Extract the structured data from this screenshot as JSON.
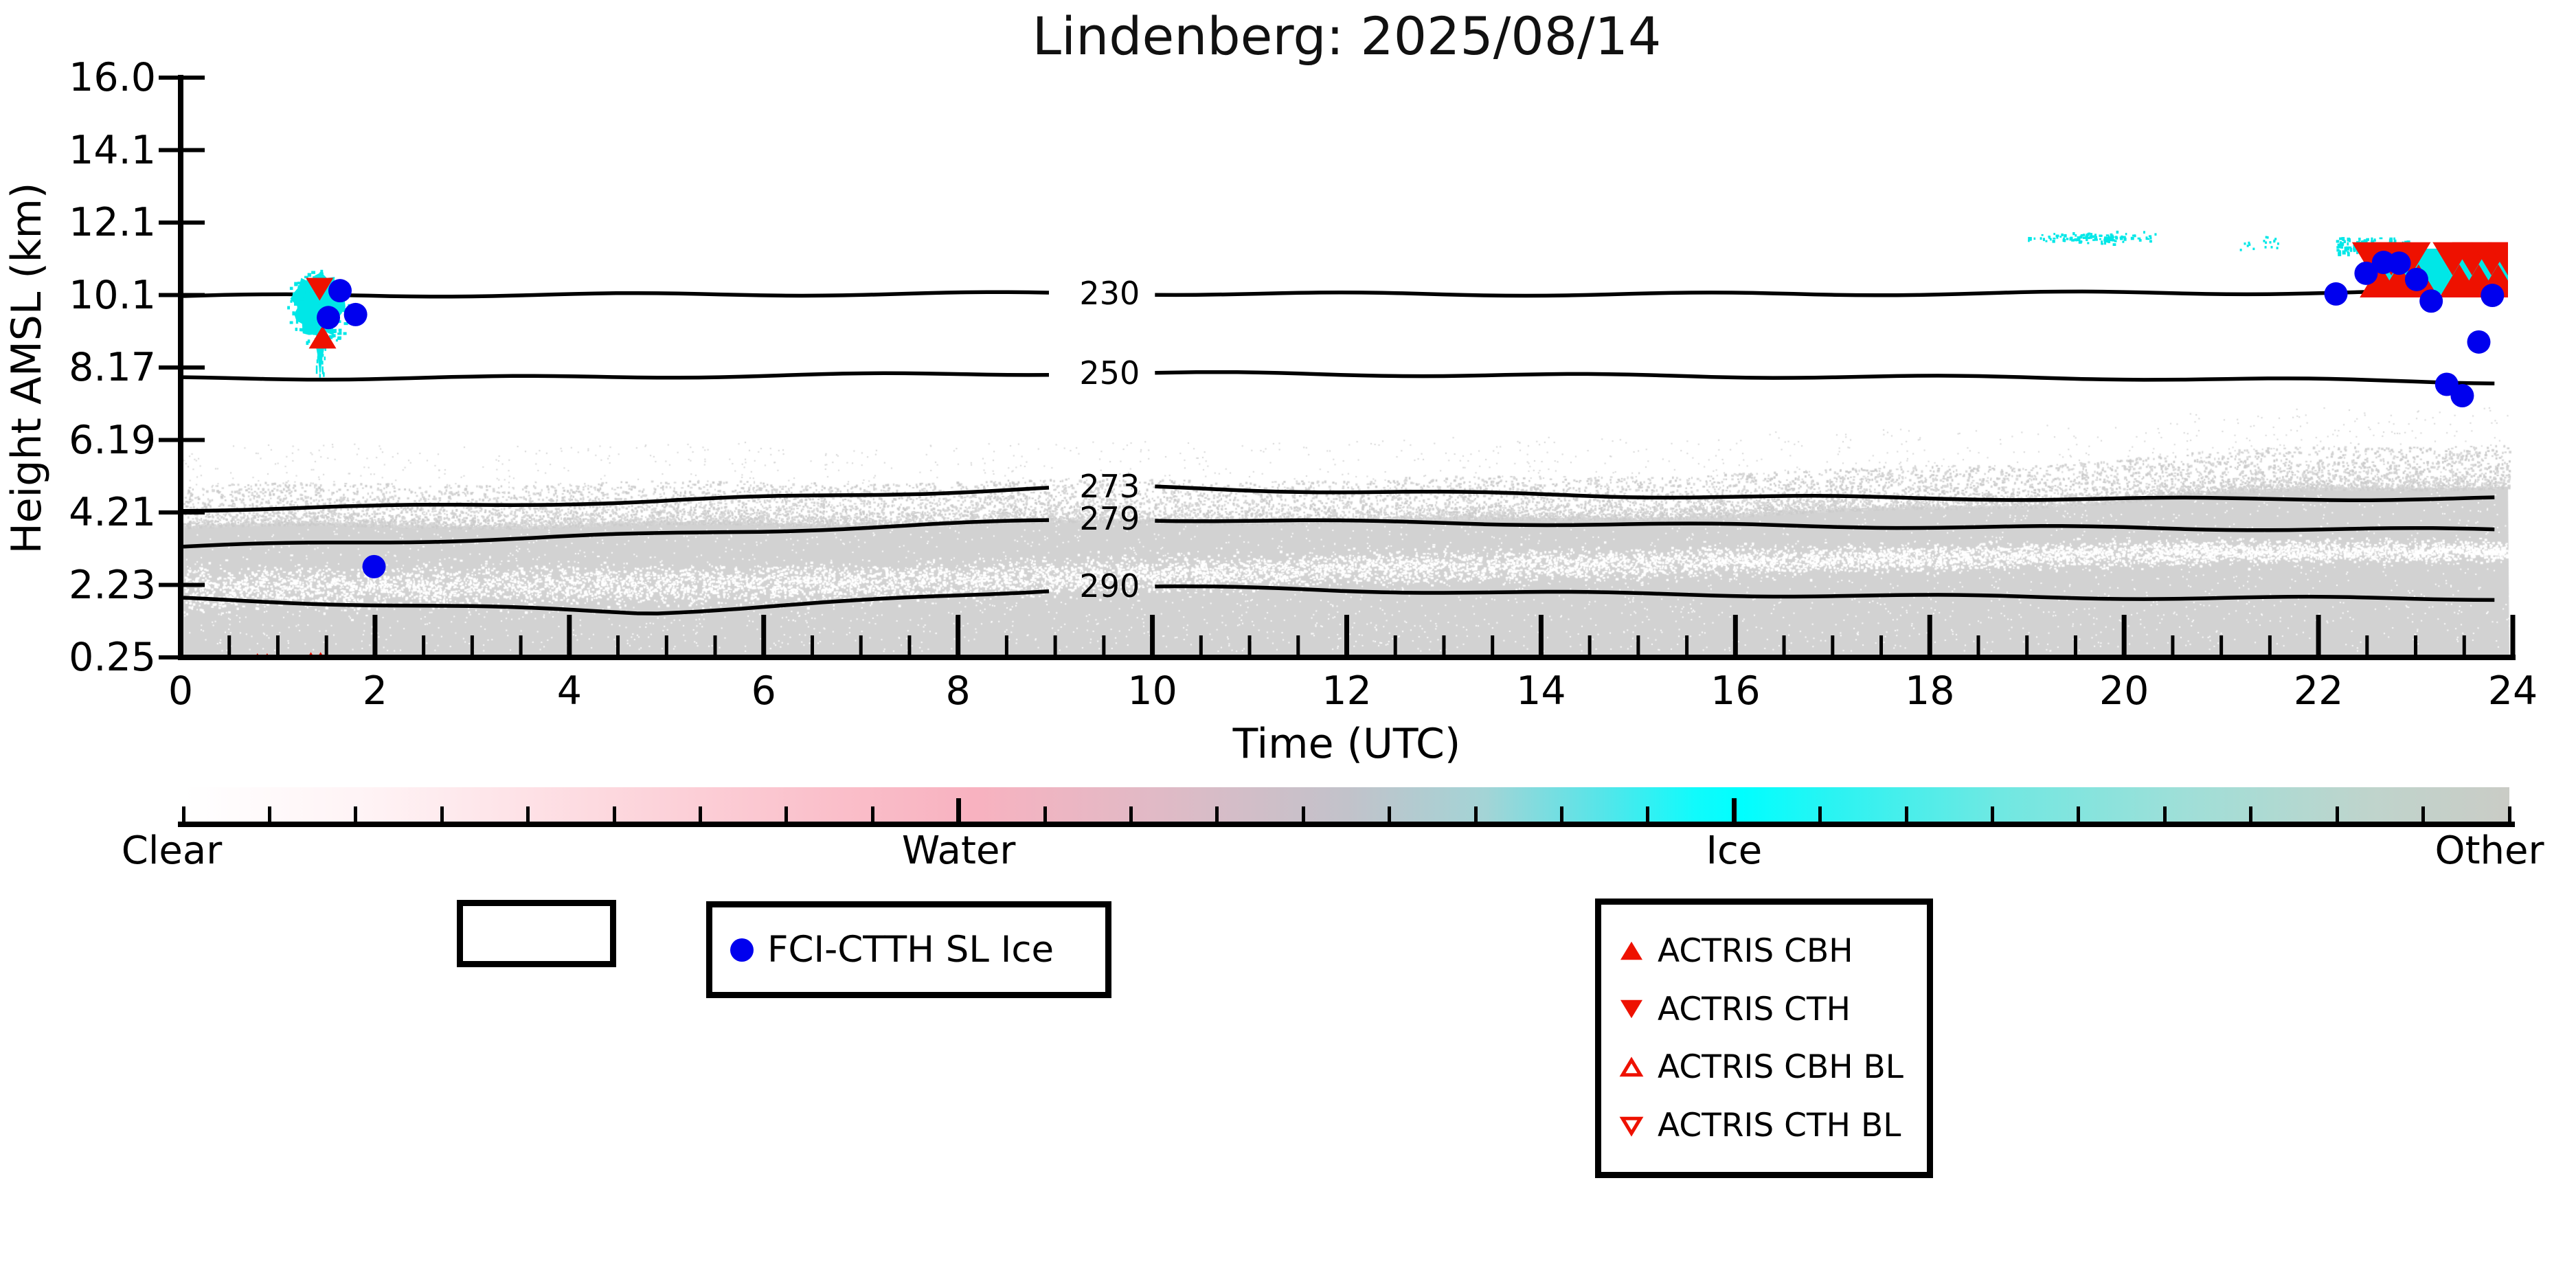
{
  "title": "Lindenberg: 2025/08/14",
  "axes": {
    "ylabel": "Height AMSL (km)",
    "xlabel": "Time (UTC)",
    "y_tick_labels": [
      "16.0",
      "14.1",
      "12.1",
      "10.1",
      "8.17",
      "6.19",
      "4.21",
      "2.23",
      "0.25"
    ],
    "x_tick_labels": [
      "0",
      "2",
      "4",
      "6",
      "8",
      "10",
      "12",
      "14",
      "16",
      "18",
      "20",
      "22",
      "24"
    ]
  },
  "colorbar": {
    "class_labels": [
      "Clear",
      "Water",
      "Ice",
      "Other"
    ],
    "gradient_stops": [
      [
        0,
        "#ffffff"
      ],
      [
        8,
        "#fff3f5"
      ],
      [
        18,
        "#fdd9df"
      ],
      [
        28,
        "#fabfca"
      ],
      [
        34,
        "#f8b2c0"
      ],
      [
        42,
        "#e0bac6"
      ],
      [
        50,
        "#c2c2ca"
      ],
      [
        56,
        "#a3d4d6"
      ],
      [
        61,
        "#55e5e9"
      ],
      [
        65,
        "#10fbfc"
      ],
      [
        67,
        "#00ffff"
      ],
      [
        71,
        "#2bf3f2"
      ],
      [
        78,
        "#6fe8e2"
      ],
      [
        86,
        "#9fdfd8"
      ],
      [
        94,
        "#bfd4cc"
      ],
      [
        100,
        "#caccc6"
      ]
    ]
  },
  "legend": {
    "fci": {
      "label": "FCI-CTTH SL Ice"
    },
    "actris_entries": [
      {
        "label": "ACTRIS CBH",
        "marker": "triangle-up-filled"
      },
      {
        "label": "ACTRIS CTH",
        "marker": "triangle-down-filled"
      },
      {
        "label": "ACTRIS CBH BL",
        "marker": "triangle-up-open"
      },
      {
        "label": "ACTRIS CTH BL",
        "marker": "triangle-down-open"
      }
    ]
  },
  "colors": {
    "marker_blue": "#0000ee",
    "marker_red": "#ee1100",
    "detection_cyan": "#00e7e7",
    "field_gray": "#d2d2d2",
    "contour_black": "#000000"
  },
  "chart_data": {
    "type": "scatter",
    "title": "Lindenberg: 2025/08/14",
    "xlabel": "Time (UTC)",
    "ylabel": "Height AMSL (km)",
    "x_range": [
      0,
      24
    ],
    "x_tick_step_hours": 2,
    "y_tick_values": [
      16.0,
      14.1,
      12.1,
      10.1,
      8.17,
      6.19,
      4.21,
      2.23,
      0.25
    ],
    "grid": false,
    "legend_position": "below",
    "contour_levels": [
      {
        "label": "230",
        "label_hour": 9.56,
        "profile": [
          [
            0,
            10.07
          ],
          [
            3,
            10.1
          ],
          [
            6,
            10.12
          ],
          [
            9.56,
            10.15
          ],
          [
            13,
            10.12
          ],
          [
            17,
            10.13
          ],
          [
            20,
            10.16
          ],
          [
            24,
            10.17
          ]
        ]
      },
      {
        "label": "250",
        "label_hour": 9.56,
        "profile": [
          [
            0,
            7.87
          ],
          [
            3,
            7.89
          ],
          [
            6,
            7.95
          ],
          [
            9.56,
            8.02
          ],
          [
            13,
            7.97
          ],
          [
            17,
            7.92
          ],
          [
            20,
            7.88
          ],
          [
            24,
            7.77
          ]
        ]
      },
      {
        "label": "273",
        "label_hour": 9.56,
        "profile": [
          [
            0,
            4.29
          ],
          [
            2,
            4.36
          ],
          [
            4.8,
            4.51
          ],
          [
            7,
            4.7
          ],
          [
            9.56,
            4.92
          ],
          [
            12,
            4.78
          ],
          [
            15,
            4.66
          ],
          [
            18,
            4.6
          ],
          [
            21,
            4.57
          ],
          [
            24,
            4.6
          ]
        ]
      },
      {
        "label": "279",
        "label_hour": 9.56,
        "profile": [
          [
            0,
            3.27
          ],
          [
            2,
            3.4
          ],
          [
            5,
            3.62
          ],
          [
            7.5,
            3.85
          ],
          [
            9.56,
            4.04
          ],
          [
            12,
            3.95
          ],
          [
            15,
            3.88
          ],
          [
            18,
            3.82
          ],
          [
            21,
            3.77
          ],
          [
            24,
            3.73
          ]
        ]
      },
      {
        "label": "290",
        "label_hour": 9.56,
        "profile": [
          [
            0,
            1.85
          ],
          [
            2,
            1.7
          ],
          [
            4.8,
            1.47
          ],
          [
            7,
            1.78
          ],
          [
            9.56,
            2.2
          ],
          [
            12,
            2.08
          ],
          [
            15,
            1.98
          ],
          [
            18,
            1.92
          ],
          [
            21,
            1.87
          ],
          [
            24,
            1.86
          ]
        ]
      }
    ],
    "series": [
      {
        "name": "FCI-CTTH SL Ice",
        "marker": "circle",
        "color": "#0000ee",
        "points": [
          [
            1.52,
            9.5
          ],
          [
            1.64,
            10.22
          ],
          [
            1.8,
            9.58
          ],
          [
            1.99,
            2.73
          ],
          [
            22.18,
            10.13
          ],
          [
            22.49,
            10.7
          ],
          [
            22.67,
            11.0
          ],
          [
            22.83,
            10.98
          ],
          [
            23.01,
            10.53
          ],
          [
            23.16,
            9.94
          ],
          [
            23.32,
            7.71
          ],
          [
            23.48,
            7.4
          ],
          [
            23.65,
            8.85
          ],
          [
            23.79,
            10.09
          ]
        ]
      },
      {
        "name": "ACTRIS CBH",
        "marker": "triangle-up-filled",
        "color": "#ee1100",
        "points": [
          [
            1.46,
            8.98
          ],
          [
            0.79,
            0.28
          ],
          [
            0.89,
            0.28
          ],
          [
            1.34,
            0.31
          ],
          [
            1.44,
            0.31
          ]
        ],
        "band_hours": [
          22.63,
          22.83,
          23.03,
          23.45,
          23.65,
          23.85
        ],
        "band_km": 10.49
      },
      {
        "name": "ACTRIS CTH",
        "marker": "triangle-down-filled",
        "color": "#ee1100",
        "points": [
          [
            1.43,
            10.26
          ]
        ],
        "band_hours": [
          22.55,
          22.75,
          22.95,
          23.38,
          23.58,
          23.78,
          23.95
        ],
        "band_km": 11.1
      },
      {
        "name": "ACTRIS CBH BL",
        "marker": "triangle-up-open",
        "color": "#ee1100",
        "points": []
      },
      {
        "name": "ACTRIS CTH BL",
        "marker": "triangle-down-open",
        "color": "#ee1100",
        "points": []
      }
    ],
    "ice_class_regions": [
      {
        "type": "blob",
        "center_hour": 1.41,
        "center_km": 9.78,
        "rx_hours": 0.27,
        "ry_km": 0.85
      },
      {
        "type": "drip",
        "hour": 1.44,
        "km_top": 8.95,
        "km_bottom": 7.95
      },
      {
        "type": "streak",
        "h0": 19.0,
        "h1": 20.32,
        "km": 11.7
      },
      {
        "type": "specks",
        "points": [
          [
            21.26,
            11.52
          ],
          [
            21.45,
            11.62
          ],
          [
            21.55,
            11.55
          ]
        ]
      },
      {
        "type": "patch",
        "h0": 22.17,
        "h1": 22.92,
        "km0": 11.25,
        "km1": 11.7
      },
      {
        "type": "band",
        "h0": 22.6,
        "h1": 23.47,
        "km0": 10.13,
        "km1": 11.38
      },
      {
        "type": "band",
        "h0": 23.33,
        "h1": 23.95,
        "km0": 10.13,
        "km1": 11.38
      },
      {
        "type": "column",
        "h0": 23.26,
        "h1": 23.4,
        "km0": 10.2,
        "km1": 11.2
      }
    ],
    "other_class_field": {
      "solid_top_km_profile": [
        [
          0,
          3.91
        ],
        [
          5,
          3.95
        ],
        [
          9,
          4.0
        ],
        [
          14,
          4.1
        ],
        [
          17,
          4.3
        ],
        [
          19.5,
          4.55
        ],
        [
          21,
          4.8
        ],
        [
          22.5,
          4.95
        ],
        [
          24,
          5.02
        ]
      ],
      "bottom_km": 0.32,
      "speckle_km_above": 1.0,
      "white_band_center_km": [
        [
          0,
          2.16
        ],
        [
          7,
          2.3
        ],
        [
          12,
          2.7
        ],
        [
          17,
          2.95
        ],
        [
          21,
          3.15
        ],
        [
          24,
          3.18
        ]
      ]
    }
  }
}
